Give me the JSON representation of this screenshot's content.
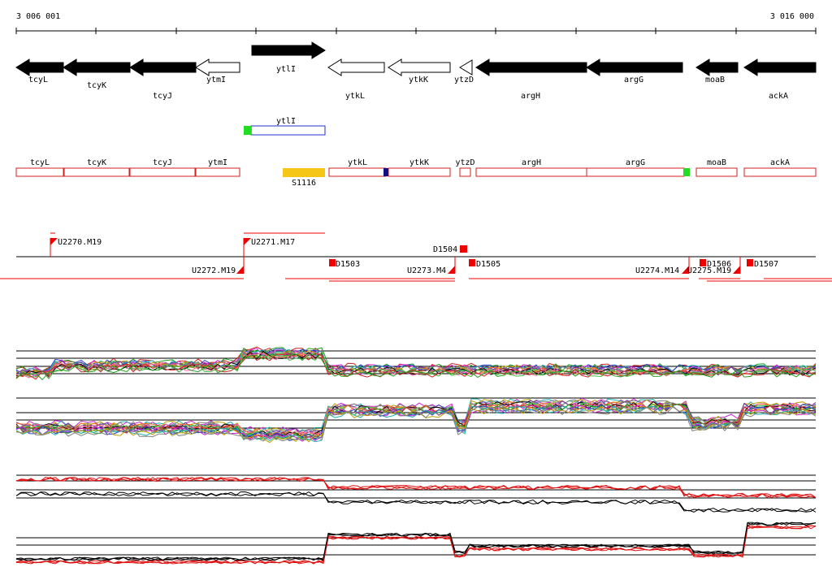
{
  "coordinates": {
    "start": "3 006 001",
    "end": "3 016 000"
  },
  "genes_top": [
    {
      "name": "tcyL",
      "strand": "minus",
      "fill": "black",
      "level": "lower"
    },
    {
      "name": "tcyK",
      "strand": "minus",
      "fill": "black",
      "level": "lower"
    },
    {
      "name": "tcyJ",
      "strand": "minus",
      "fill": "black",
      "level": "lower"
    },
    {
      "name": "ytmI",
      "strand": "minus",
      "fill": "white",
      "level": "lower"
    },
    {
      "name": "ytlI",
      "strand": "plus",
      "fill": "black",
      "level": "upper"
    },
    {
      "name": "ytkL",
      "strand": "minus",
      "fill": "white",
      "level": "lower"
    },
    {
      "name": "ytkK",
      "strand": "minus",
      "fill": "white",
      "level": "lower"
    },
    {
      "name": "ytzD",
      "strand": "minus",
      "fill": "white",
      "level": "lower"
    },
    {
      "name": "argH",
      "strand": "minus",
      "fill": "black",
      "level": "lower"
    },
    {
      "name": "argG",
      "strand": "minus",
      "fill": "black",
      "level": "lower"
    },
    {
      "name": "moaB",
      "strand": "minus",
      "fill": "black",
      "level": "lower"
    },
    {
      "name": "ackA",
      "strand": "minus",
      "fill": "black",
      "level": "lower"
    }
  ],
  "plus_box": {
    "name": "ytlI",
    "color": "#2233cc"
  },
  "minus_boxes": [
    "tcyL",
    "tcyK",
    "tcyJ",
    "ytmI",
    "ytkL",
    "ytkK",
    "ytzD",
    "argH",
    "argG",
    "moaB",
    "ackA"
  ],
  "rna_feature": {
    "name": "S1116",
    "color": "#f5c518"
  },
  "probes_above": [
    "U2270.M19",
    "U2271.M17",
    "D1504"
  ],
  "probes_below": [
    "U2272.M19",
    "D1503",
    "U2273.M4",
    "D1505",
    "U2274.M14",
    "U2275.M19",
    "D1506",
    "D1507"
  ],
  "colors": {
    "gene_box_outline": "#d02020",
    "accent_red": "#ee0000",
    "accent_green": "#22dd22",
    "accent_blue": "#101080"
  }
}
